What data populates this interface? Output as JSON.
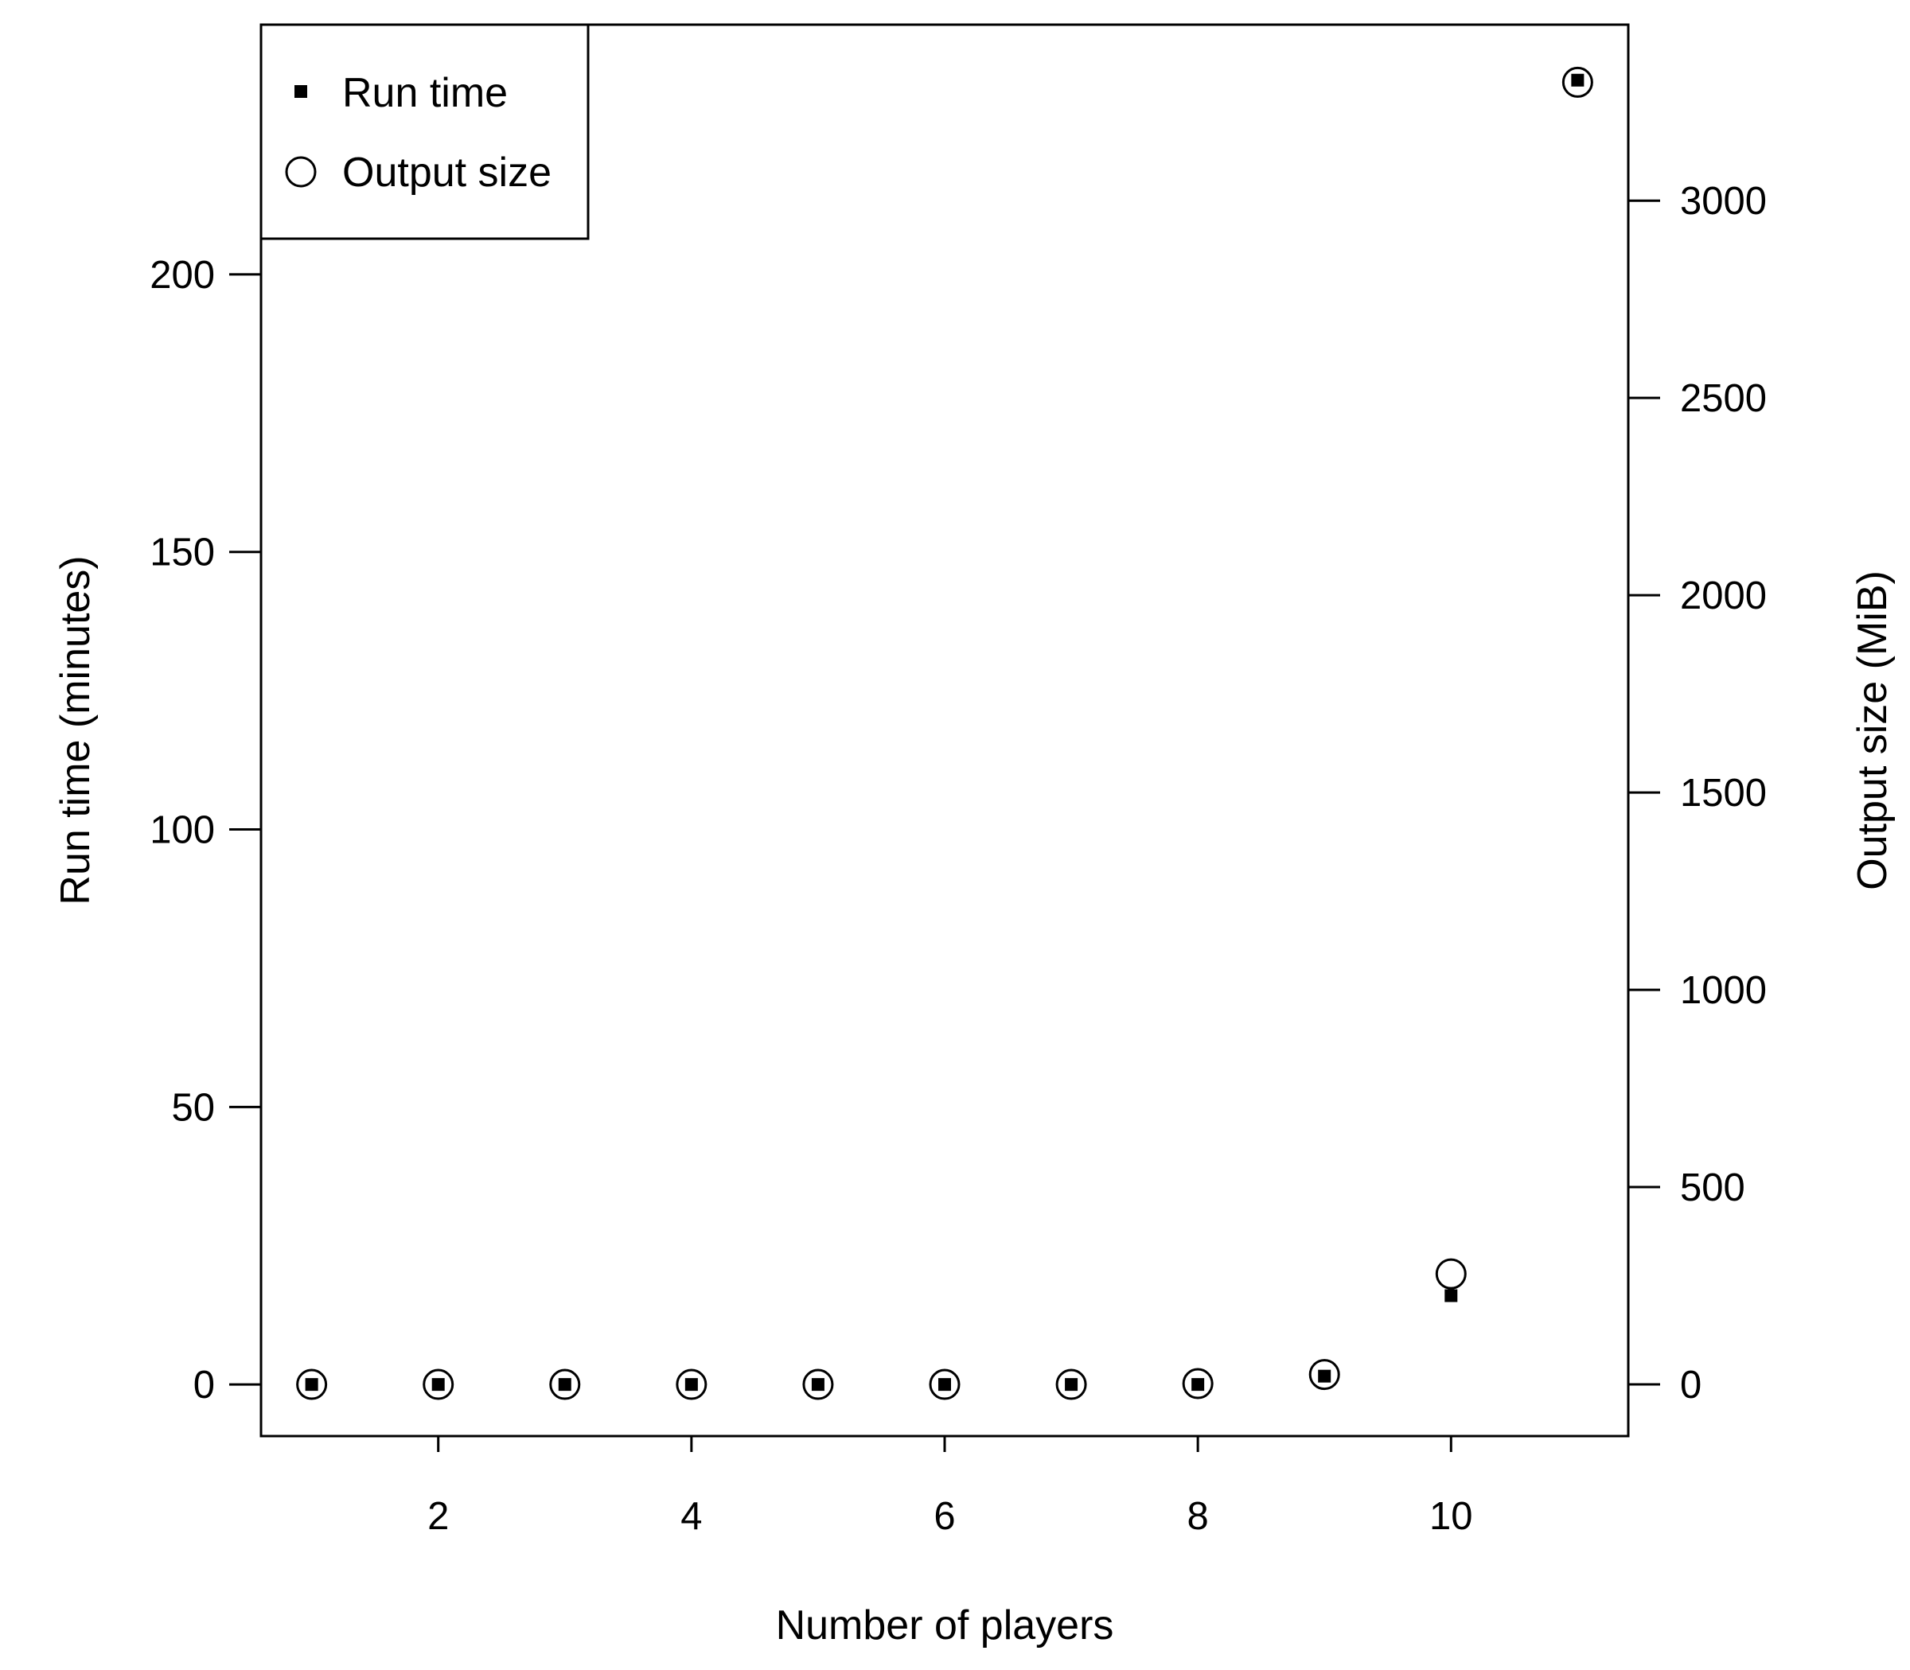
{
  "chart_data": {
    "type": "scatter",
    "title": "",
    "xlabel": "Number of players",
    "ylabel": "Run time (minutes)",
    "y2label": "Output size (MiB)",
    "xlim": [
      0.6,
      11.4
    ],
    "ylim": [
      -9.3,
      245
    ],
    "y2lim": [
      -131,
      3446
    ],
    "x_ticks": [
      2,
      4,
      6,
      8,
      10
    ],
    "y_ticks": [
      0,
      50,
      100,
      150,
      200
    ],
    "y2_ticks": [
      0,
      500,
      1000,
      1500,
      2000,
      2500,
      3000
    ],
    "x": [
      1,
      2,
      3,
      4,
      5,
      6,
      7,
      8,
      9,
      10,
      11
    ],
    "series": [
      {
        "name": "Run time",
        "axis": "left",
        "marker": "filled-square",
        "values": [
          0,
          0,
          0,
          0,
          0,
          0,
          0,
          0,
          1.5,
          16,
          235
        ]
      },
      {
        "name": "Output size",
        "axis": "right",
        "marker": "open-circle",
        "values": [
          0,
          0,
          0,
          0,
          0,
          0,
          0,
          2,
          25,
          280,
          3300
        ]
      }
    ],
    "legend": {
      "position": "top-left",
      "entries": [
        "Run time",
        "Output size"
      ]
    },
    "grid": false,
    "colors": {
      "marks": "#000000",
      "background": "#ffffff"
    }
  }
}
